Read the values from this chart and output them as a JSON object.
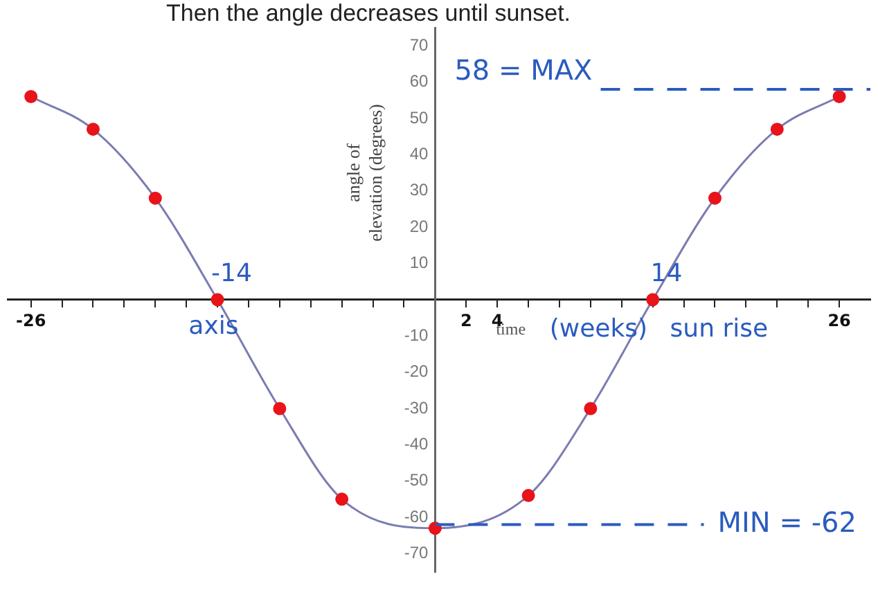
{
  "chart_data": {
    "type": "line",
    "title": "Then the angle decreases until sunset.",
    "xlabel": "time",
    "ylabel": "angle of elevation (degrees)",
    "x": [
      -26,
      -22,
      -18,
      -14,
      -10,
      -6,
      0,
      6,
      10,
      14,
      18,
      22,
      26
    ],
    "series": [
      {
        "color": "#7a7cb0",
        "values": [
          56,
          47,
          28,
          0,
          -30,
          -55,
          -63,
          -54,
          -30,
          0,
          28,
          47,
          56
        ]
      }
    ],
    "marker": "circle",
    "line_style": "solid",
    "grid": false,
    "legend": false,
    "xlim": [
      -27.5,
      28
    ],
    "xticks": [
      {
        "value": -26,
        "label": "-26"
      },
      {
        "value": -24,
        "label": null
      },
      {
        "value": -22,
        "label": null
      },
      {
        "value": -20,
        "label": null
      },
      {
        "value": -18,
        "label": null
      },
      {
        "value": -16,
        "label": null
      },
      {
        "value": -14,
        "label": null
      },
      {
        "value": -12,
        "label": null
      },
      {
        "value": -10,
        "label": null
      },
      {
        "value": -8,
        "label": null
      },
      {
        "value": -6,
        "label": null
      },
      {
        "value": -4,
        "label": null
      },
      {
        "value": -2,
        "label": null
      },
      {
        "value": 2,
        "label": "2"
      },
      {
        "value": 4,
        "label": "4"
      },
      {
        "value": 6,
        "label": null
      },
      {
        "value": 8,
        "label": null
      },
      {
        "value": 10,
        "label": null
      },
      {
        "value": 12,
        "label": null
      },
      {
        "value": 14,
        "label": null
      },
      {
        "value": 16,
        "label": null
      },
      {
        "value": 18,
        "label": null
      },
      {
        "value": 20,
        "label": null
      },
      {
        "value": 22,
        "label": null
      },
      {
        "value": 24,
        "label": null
      },
      {
        "value": 26,
        "label": "26"
      }
    ],
    "ylim": [
      -75,
      75
    ],
    "yticks": [
      -70,
      -60,
      -50,
      -40,
      -30,
      -20,
      -10,
      10,
      20,
      30,
      40,
      50,
      60,
      70
    ],
    "ref_lines": [
      {
        "axis": "y",
        "value": 58,
        "label": "58 = MAX",
        "color": "#2a5bbf",
        "line_style": "dashed"
      },
      {
        "axis": "y",
        "value": -62,
        "label": "MIN = -62",
        "color": "#2a5bbf",
        "line_style": "dashed"
      }
    ],
    "annotations": [
      "-14",
      "14",
      "axis",
      "(weeks)",
      "sun rise"
    ]
  }
}
